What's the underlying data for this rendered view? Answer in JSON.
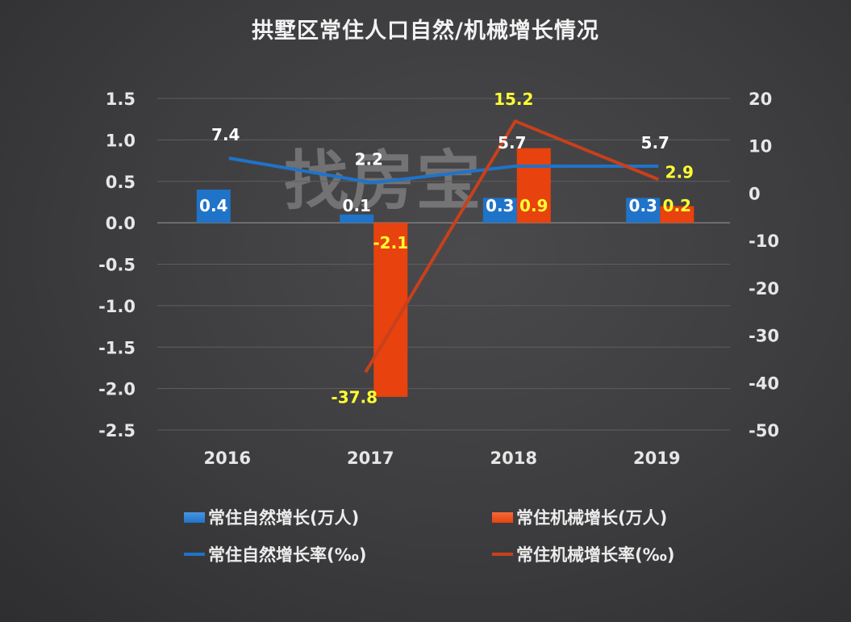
{
  "title": "拱墅区常住人口自然/机械增长情况",
  "watermark": "找房宝",
  "legend": [
    {
      "label": "常住自然增长(万人)",
      "kind": "bar",
      "color": "#1f73c9"
    },
    {
      "label": "常住机械增长(万人)",
      "kind": "bar",
      "color": "#e8420e"
    },
    {
      "label": "常住自然增长率(‰)",
      "kind": "line",
      "color": "#1f73c9"
    },
    {
      "label": "常住机械增长率(‰)",
      "kind": "line",
      "color": "#c8401c"
    }
  ],
  "chart_data": {
    "type": "bar+line",
    "title": "拱墅区常住人口自然/机械增长情况",
    "categories": [
      "2016",
      "2017",
      "2018",
      "2019"
    ],
    "left_axis": {
      "ylim": [
        -2.5,
        1.5
      ],
      "ticks": [
        "1.5",
        "1.0",
        "0.5",
        "0.0",
        "-0.5",
        "-1.0",
        "-1.5",
        "-2.0",
        "-2.5"
      ]
    },
    "right_axis": {
      "ylim": [
        -50,
        20
      ],
      "ticks": [
        "20",
        "10",
        "0",
        "-10",
        "-20",
        "-30",
        "-40",
        "-50"
      ]
    },
    "series": [
      {
        "name": "常住自然增长(万人)",
        "type": "bar",
        "axis": "left",
        "color": "#1f73c9",
        "values": [
          0.4,
          0.1,
          0.3,
          0.3
        ]
      },
      {
        "name": "常住机械增长(万人)",
        "type": "bar",
        "axis": "left",
        "color": "#e8420e",
        "values": [
          null,
          -2.1,
          0.9,
          0.2
        ]
      },
      {
        "name": "常住自然增长率(‰)",
        "type": "line",
        "axis": "right",
        "color": "#1f73c9",
        "values": [
          7.4,
          2.2,
          5.7,
          5.7
        ]
      },
      {
        "name": "常住机械增长率(‰)",
        "type": "line",
        "axis": "right",
        "color": "#c8401c",
        "values": [
          null,
          -37.8,
          15.2,
          2.9
        ]
      }
    ],
    "grid": true,
    "legend_position": "bottom"
  }
}
